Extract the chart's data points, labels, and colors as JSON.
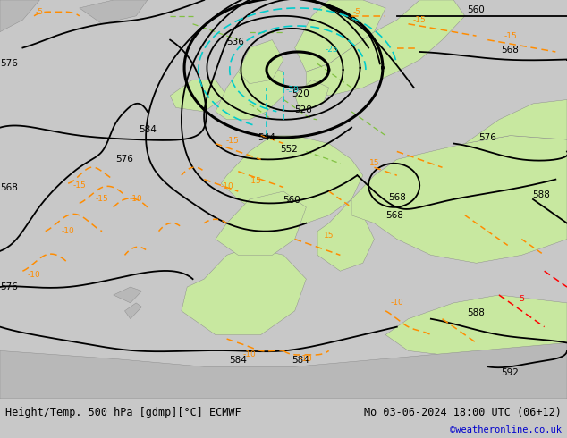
{
  "title_left": "Height/Temp. 500 hPa [gdmp][°C] ECMWF",
  "title_right": "Mo 03-06-2024 18:00 UTC (06+12)",
  "credit": "©weatheronline.co.uk",
  "fig_width": 6.34,
  "fig_height": 4.9,
  "dpi": 100,
  "bg_sea": "#c8c8c8",
  "land_green": "#c8e8a0",
  "land_gray": "#b8b8b8",
  "z500_color": "#000000",
  "temp_orange_color": "#FF8C00",
  "temp_red_color": "#FF0000",
  "cyan_color": "#00CCCC",
  "title_fontsize": 8.5,
  "credit_fontsize": 7.5,
  "label_fontsize": 7.5,
  "lw_thin": 1.3,
  "lw_thick": 2.2,
  "lw_temp": 1.1,
  "lw_cyan": 1.2
}
